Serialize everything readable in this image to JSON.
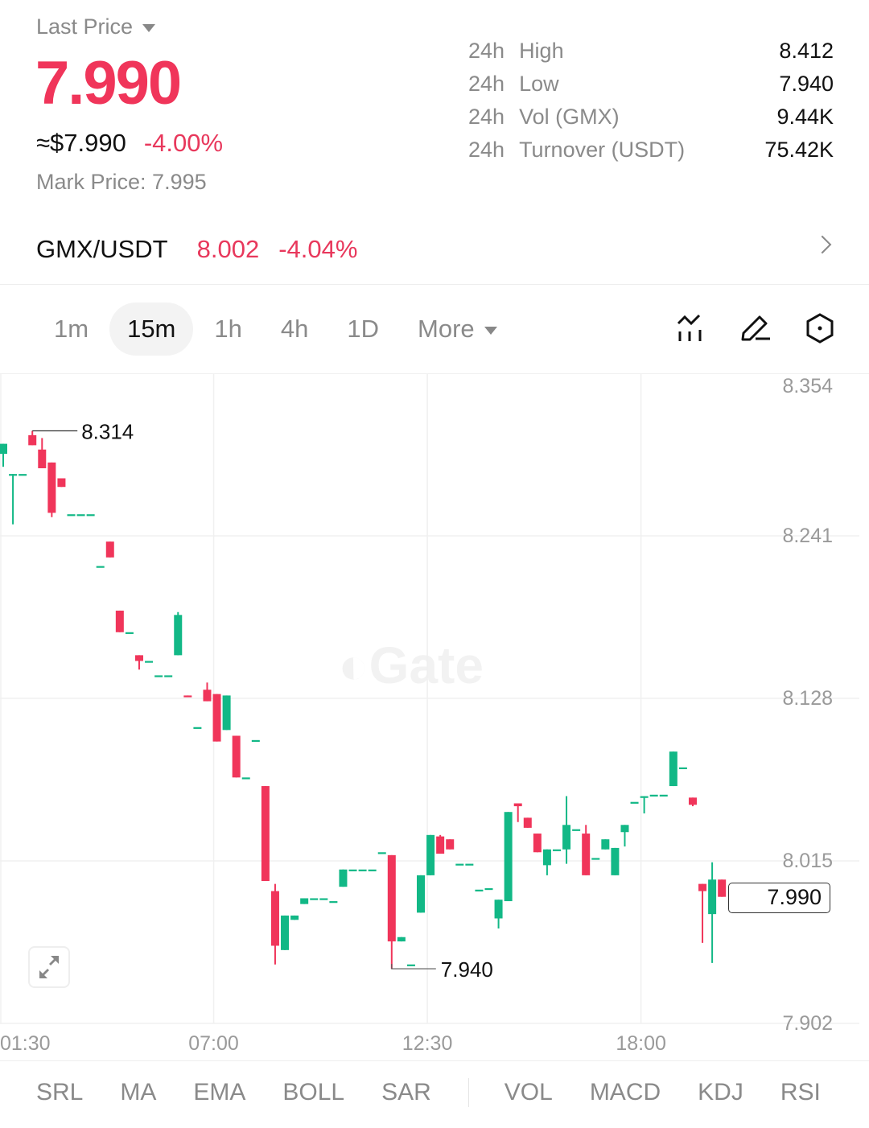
{
  "header": {
    "price_type": "Last Price",
    "last_price": "7.990",
    "usd_price": "≈$7.990",
    "change_pct": "-4.00%",
    "mark_price_label": "Mark Price:",
    "mark_price": "7.995",
    "stats": [
      {
        "period": "24h",
        "label": "High",
        "value": "8.412"
      },
      {
        "period": "24h",
        "label": "Low",
        "value": "7.940"
      },
      {
        "period": "24h",
        "label": "Vol (GMX)",
        "value": "9.44K"
      },
      {
        "period": "24h",
        "label": "Turnover (USDT)",
        "value": "75.42K"
      }
    ]
  },
  "pair": {
    "symbol": "GMX/USDT",
    "price": "8.002",
    "change": "-4.04%"
  },
  "intervals": [
    {
      "label": "1m",
      "active": false
    },
    {
      "label": "15m",
      "active": true
    },
    {
      "label": "1h",
      "active": false
    },
    {
      "label": "4h",
      "active": false
    },
    {
      "label": "1D",
      "active": false
    },
    {
      "label": "More",
      "active": false
    }
  ],
  "tools": [
    "indicator-chart-icon",
    "draw-pencil-icon",
    "settings-hexagon-icon"
  ],
  "watermark": "Gate",
  "indicators": [
    "SRL",
    "MA",
    "EMA",
    "BOLL",
    "SAR",
    "VOL",
    "MACD",
    "KDJ",
    "RSI"
  ],
  "colors": {
    "up": "#12b886",
    "down": "#f0355a",
    "accent": "#f0355a"
  },
  "chart_data": {
    "type": "candlestick",
    "interval": "15m",
    "ylim": [
      7.902,
      8.354
    ],
    "yticks": [
      "8.354",
      "8.241",
      "8.128",
      "8.015",
      "7.902"
    ],
    "xticks": [
      "01:30",
      "07:00",
      "12:30",
      "18:00"
    ],
    "grid": true,
    "high_marker": "8.314",
    "low_marker": "7.940",
    "current_price": "7.990",
    "candles": [
      {
        "t": "01:30",
        "o": 8.298,
        "h": 8.305,
        "l": 8.289,
        "c": 8.305
      },
      {
        "t": "01:45",
        "o": 8.283,
        "h": 8.284,
        "l": 8.249,
        "c": 8.284
      },
      {
        "t": "02:00",
        "o": 8.284,
        "h": 8.284,
        "l": 8.284,
        "c": 8.284
      },
      {
        "t": "02:15",
        "o": 8.311,
        "h": 8.314,
        "l": 8.304,
        "c": 8.304
      },
      {
        "t": "02:30",
        "o": 8.301,
        "h": 8.309,
        "l": 8.288,
        "c": 8.288
      },
      {
        "t": "02:45",
        "o": 8.292,
        "h": 8.292,
        "l": 8.254,
        "c": 8.257
      },
      {
        "t": "03:00",
        "o": 8.281,
        "h": 8.281,
        "l": 8.275,
        "c": 8.275
      },
      {
        "t": "03:15",
        "o": 8.256,
        "h": 8.256,
        "l": 8.256,
        "c": 8.256
      },
      {
        "t": "03:30",
        "o": 8.256,
        "h": 8.256,
        "l": 8.256,
        "c": 8.256
      },
      {
        "t": "03:45",
        "o": 8.256,
        "h": 8.256,
        "l": 8.256,
        "c": 8.256
      },
      {
        "t": "04:00",
        "o": 8.22,
        "h": 8.22,
        "l": 8.22,
        "c": 8.22
      },
      {
        "t": "04:15",
        "o": 8.237,
        "h": 8.237,
        "l": 8.226,
        "c": 8.226
      },
      {
        "t": "04:30",
        "o": 8.189,
        "h": 8.189,
        "l": 8.174,
        "c": 8.174
      },
      {
        "t": "04:45",
        "o": 8.174,
        "h": 8.174,
        "l": 8.174,
        "c": 8.174
      },
      {
        "t": "05:00",
        "o": 8.158,
        "h": 8.158,
        "l": 8.148,
        "c": 8.154
      },
      {
        "t": "05:15",
        "o": 8.154,
        "h": 8.154,
        "l": 8.154,
        "c": 8.154
      },
      {
        "t": "05:30",
        "o": 8.144,
        "h": 8.144,
        "l": 8.144,
        "c": 8.144
      },
      {
        "t": "05:45",
        "o": 8.144,
        "h": 8.144,
        "l": 8.144,
        "c": 8.144
      },
      {
        "t": "06:00",
        "o": 8.158,
        "h": 8.188,
        "l": 8.158,
        "c": 8.186
      },
      {
        "t": "06:15",
        "o": 8.13,
        "h": 8.13,
        "l": 8.129,
        "c": 8.129
      },
      {
        "t": "06:30",
        "o": 8.108,
        "h": 8.108,
        "l": 8.108,
        "c": 8.108
      },
      {
        "t": "06:45",
        "o": 8.134,
        "h": 8.139,
        "l": 8.126,
        "c": 8.126
      },
      {
        "t": "07:00",
        "o": 8.131,
        "h": 8.131,
        "l": 8.098,
        "c": 8.098
      },
      {
        "t": "07:15",
        "o": 8.106,
        "h": 8.13,
        "l": 8.106,
        "c": 8.13
      },
      {
        "t": "07:30",
        "o": 8.102,
        "h": 8.102,
        "l": 8.073,
        "c": 8.073
      },
      {
        "t": "07:45",
        "o": 8.073,
        "h": 8.073,
        "l": 8.073,
        "c": 8.073
      },
      {
        "t": "08:00",
        "o": 8.099,
        "h": 8.099,
        "l": 8.099,
        "c": 8.099
      },
      {
        "t": "08:15",
        "o": 8.067,
        "h": 8.067,
        "l": 8.001,
        "c": 8.001
      },
      {
        "t": "08:30",
        "o": 7.994,
        "h": 7.999,
        "l": 7.943,
        "c": 7.956
      },
      {
        "t": "08:45",
        "o": 7.953,
        "h": 7.977,
        "l": 7.953,
        "c": 7.977
      },
      {
        "t": "09:00",
        "o": 7.974,
        "h": 7.977,
        "l": 7.974,
        "c": 7.977
      },
      {
        "t": "09:15",
        "o": 7.985,
        "h": 7.989,
        "l": 7.985,
        "c": 7.989
      },
      {
        "t": "09:30",
        "o": 7.989,
        "h": 7.989,
        "l": 7.989,
        "c": 7.989
      },
      {
        "t": "09:45",
        "o": 7.989,
        "h": 7.989,
        "l": 7.989,
        "c": 7.989
      },
      {
        "t": "10:00",
        "o": 7.987,
        "h": 7.987,
        "l": 7.987,
        "c": 7.987
      },
      {
        "t": "10:15",
        "o": 7.997,
        "h": 8.009,
        "l": 7.997,
        "c": 8.009
      },
      {
        "t": "10:30",
        "o": 8.009,
        "h": 8.009,
        "l": 8.009,
        "c": 8.009
      },
      {
        "t": "10:45",
        "o": 8.009,
        "h": 8.009,
        "l": 8.009,
        "c": 8.009
      },
      {
        "t": "11:00",
        "o": 8.009,
        "h": 8.009,
        "l": 8.009,
        "c": 8.009
      },
      {
        "t": "11:15",
        "o": 8.021,
        "h": 8.021,
        "l": 8.021,
        "c": 8.021
      },
      {
        "t": "11:30",
        "o": 8.019,
        "h": 8.019,
        "l": 7.94,
        "c": 7.959
      },
      {
        "t": "11:45",
        "o": 7.959,
        "h": 7.962,
        "l": 7.959,
        "c": 7.962
      },
      {
        "t": "12:00",
        "o": 7.943,
        "h": 7.943,
        "l": 7.943,
        "c": 7.943
      },
      {
        "t": "12:15",
        "o": 7.979,
        "h": 8.005,
        "l": 7.979,
        "c": 8.005
      },
      {
        "t": "12:30",
        "o": 8.005,
        "h": 8.033,
        "l": 8.005,
        "c": 8.033
      },
      {
        "t": "12:45",
        "o": 8.032,
        "h": 8.033,
        "l": 8.02,
        "c": 8.02
      },
      {
        "t": "13:00",
        "o": 8.03,
        "h": 8.03,
        "l": 8.023,
        "c": 8.023
      },
      {
        "t": "13:15",
        "o": 8.013,
        "h": 8.013,
        "l": 8.013,
        "c": 8.013
      },
      {
        "t": "13:30",
        "o": 8.013,
        "h": 8.013,
        "l": 8.013,
        "c": 8.013
      },
      {
        "t": "13:45",
        "o": 7.995,
        "h": 7.995,
        "l": 7.995,
        "c": 7.995
      },
      {
        "t": "14:00",
        "o": 7.996,
        "h": 7.996,
        "l": 7.996,
        "c": 7.996
      },
      {
        "t": "14:15",
        "o": 7.975,
        "h": 7.988,
        "l": 7.968,
        "c": 7.988
      },
      {
        "t": "14:30",
        "o": 7.987,
        "h": 8.049,
        "l": 7.987,
        "c": 8.049
      },
      {
        "t": "14:45",
        "o": 8.055,
        "h": 8.055,
        "l": 8.042,
        "c": 8.053
      },
      {
        "t": "15:00",
        "o": 8.045,
        "h": 8.045,
        "l": 8.038,
        "c": 8.038
      },
      {
        "t": "15:15",
        "o": 8.034,
        "h": 8.034,
        "l": 8.021,
        "c": 8.021
      },
      {
        "t": "15:30",
        "o": 8.012,
        "h": 8.023,
        "l": 8.005,
        "c": 8.023
      },
      {
        "t": "15:45",
        "o": 8.023,
        "h": 8.023,
        "l": 8.023,
        "c": 8.023
      },
      {
        "t": "16:00",
        "o": 8.023,
        "h": 8.06,
        "l": 8.013,
        "c": 8.04
      },
      {
        "t": "16:15",
        "o": 8.037,
        "h": 8.037,
        "l": 8.037,
        "c": 8.037
      },
      {
        "t": "16:30",
        "o": 8.034,
        "h": 8.04,
        "l": 8.005,
        "c": 8.005
      },
      {
        "t": "16:45",
        "o": 8.017,
        "h": 8.017,
        "l": 8.017,
        "c": 8.017
      },
      {
        "t": "17:00",
        "o": 8.023,
        "h": 8.03,
        "l": 8.023,
        "c": 8.03
      },
      {
        "t": "17:15",
        "o": 8.005,
        "h": 8.024,
        "l": 8.005,
        "c": 8.024
      },
      {
        "t": "17:30",
        "o": 8.035,
        "h": 8.04,
        "l": 8.025,
        "c": 8.04
      },
      {
        "t": "17:45",
        "o": 8.056,
        "h": 8.056,
        "l": 8.056,
        "c": 8.056
      },
      {
        "t": "18:00",
        "o": 8.06,
        "h": 8.06,
        "l": 8.048,
        "c": 8.06
      },
      {
        "t": "18:15",
        "o": 8.061,
        "h": 8.061,
        "l": 8.061,
        "c": 8.061
      },
      {
        "t": "18:30",
        "o": 8.061,
        "h": 8.061,
        "l": 8.061,
        "c": 8.061
      },
      {
        "t": "18:45",
        "o": 8.067,
        "h": 8.091,
        "l": 8.067,
        "c": 8.091
      },
      {
        "t": "19:00",
        "o": 8.08,
        "h": 8.08,
        "l": 8.08,
        "c": 8.08
      },
      {
        "t": "19:15",
        "o": 8.059,
        "h": 8.059,
        "l": 8.053,
        "c": 8.054
      },
      {
        "t": "19:30",
        "o": 7.999,
        "h": 7.999,
        "l": 7.958,
        "c": 7.994
      },
      {
        "t": "19:45",
        "o": 7.978,
        "h": 8.014,
        "l": 7.944,
        "c": 8.002
      },
      {
        "t": "20:00",
        "o": 8.002,
        "h": 8.002,
        "l": 7.99,
        "c": 7.99
      }
    ]
  }
}
